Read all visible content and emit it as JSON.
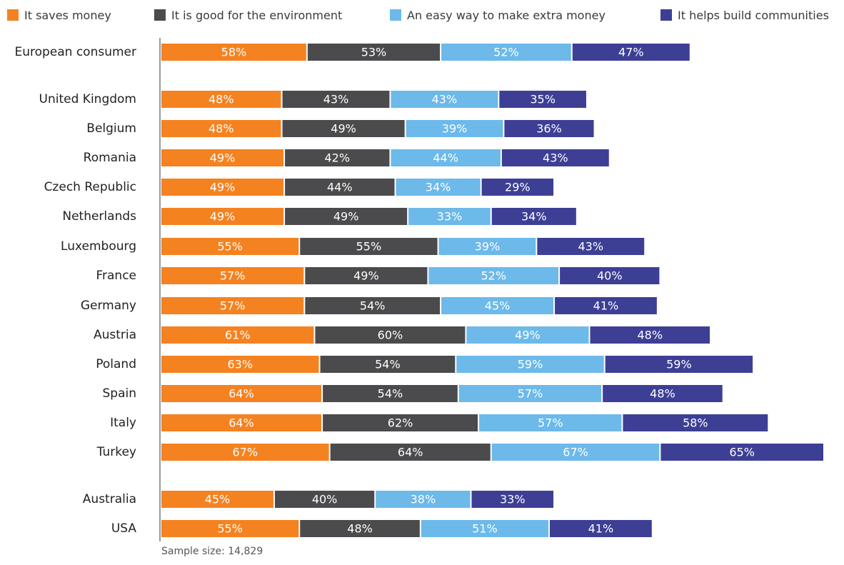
{
  "colors": {
    "saves_money": "#f58220",
    "environment": "#4b4b4d",
    "extra_money": "#6cb9ea",
    "communities": "#3d3f95",
    "axis": "#9a9a9a",
    "category_text": "#222222"
  },
  "legend": {
    "items": [
      {
        "label": "It saves money",
        "color": "#f58220"
      },
      {
        "label": "It is good for the environment",
        "color": "#4b4b4d"
      },
      {
        "label": "An easy way to make extra money",
        "color": "#6cb9ea"
      },
      {
        "label": "It helps build communities",
        "color": "#3d3f95"
      }
    ]
  },
  "note": "Sample size: 14,829",
  "chart_data": {
    "type": "bar",
    "orientation": "horizontal",
    "stacked": true,
    "value_suffix": "%",
    "legend_placement": "top",
    "grid": false,
    "categories": [
      "European consumer",
      "United Kingdom",
      "Belgium",
      "Romania",
      "Czech Republic",
      "Netherlands",
      "Luxembourg",
      "France",
      "Germany",
      "Austria",
      "Poland",
      "Spain",
      "Italy",
      "Turkey",
      "Australia",
      "USA"
    ],
    "series": [
      {
        "name": "It saves money",
        "color": "#f58220",
        "values": [
          58,
          48,
          48,
          49,
          49,
          49,
          55,
          57,
          57,
          61,
          63,
          64,
          64,
          67,
          45,
          55
        ]
      },
      {
        "name": "It is good for the environment",
        "color": "#4b4b4d",
        "values": [
          53,
          43,
          49,
          42,
          44,
          49,
          55,
          49,
          54,
          60,
          54,
          54,
          62,
          64,
          40,
          48
        ]
      },
      {
        "name": "An easy way to make extra money",
        "color": "#6cb9ea",
        "values": [
          52,
          43,
          39,
          44,
          34,
          33,
          39,
          52,
          45,
          49,
          59,
          57,
          57,
          67,
          38,
          51
        ]
      },
      {
        "name": "It helps build communities",
        "color": "#3d3f95",
        "values": [
          47,
          35,
          36,
          43,
          29,
          34,
          43,
          40,
          41,
          48,
          59,
          48,
          58,
          65,
          33,
          41
        ]
      }
    ]
  }
}
